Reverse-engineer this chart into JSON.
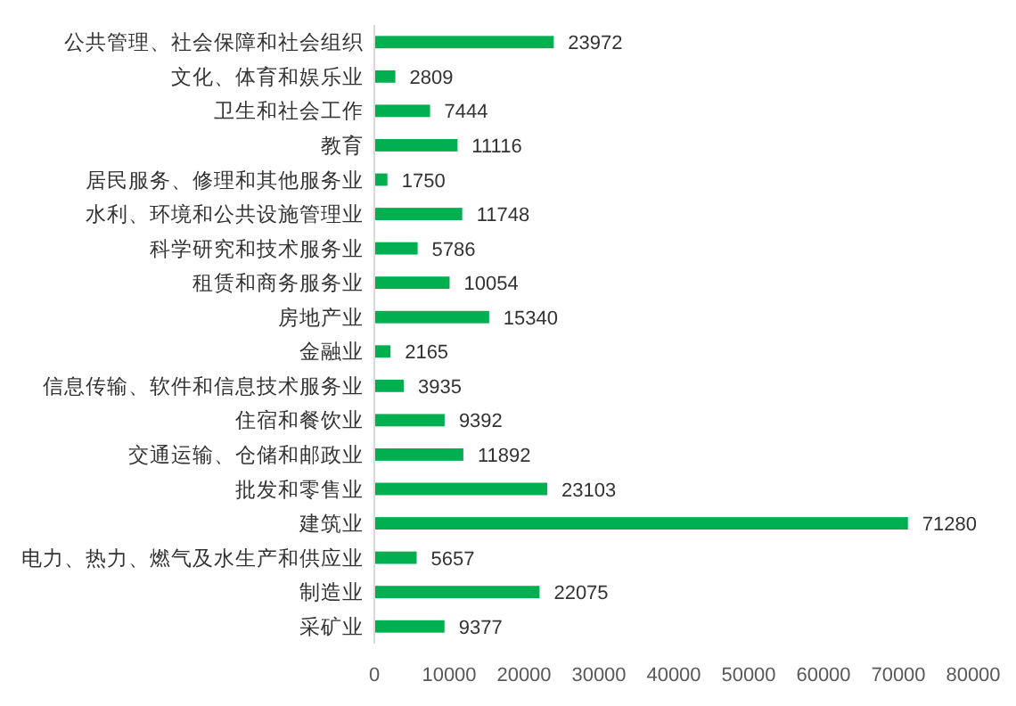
{
  "chart_data": {
    "type": "bar",
    "orientation": "horizontal",
    "categories": [
      "公共管理、社会保障和社会组织",
      "文化、体育和娱乐业",
      "卫生和社会工作",
      "教育",
      "居民服务、修理和其他服务业",
      "水利、环境和公共设施管理业",
      "科学研究和技术服务业",
      "租赁和商务服务业",
      "房地产业",
      "金融业",
      "信息传输、软件和信息技术服务业",
      "住宿和餐饮业",
      "交通运输、仓储和邮政业",
      "批发和零售业",
      "建筑业",
      "电力、热力、燃气及水生产和供应业",
      "制造业",
      "采矿业"
    ],
    "values": [
      23972,
      2809,
      7444,
      11116,
      1750,
      11748,
      5786,
      10054,
      15340,
      2165,
      3935,
      9392,
      11892,
      23103,
      71280,
      5657,
      22075,
      9377
    ],
    "color": "#00b050",
    "xlim": [
      0,
      80000
    ],
    "xticks": [
      0,
      10000,
      20000,
      30000,
      40000,
      50000,
      60000,
      70000,
      80000
    ],
    "data_labels": true
  }
}
